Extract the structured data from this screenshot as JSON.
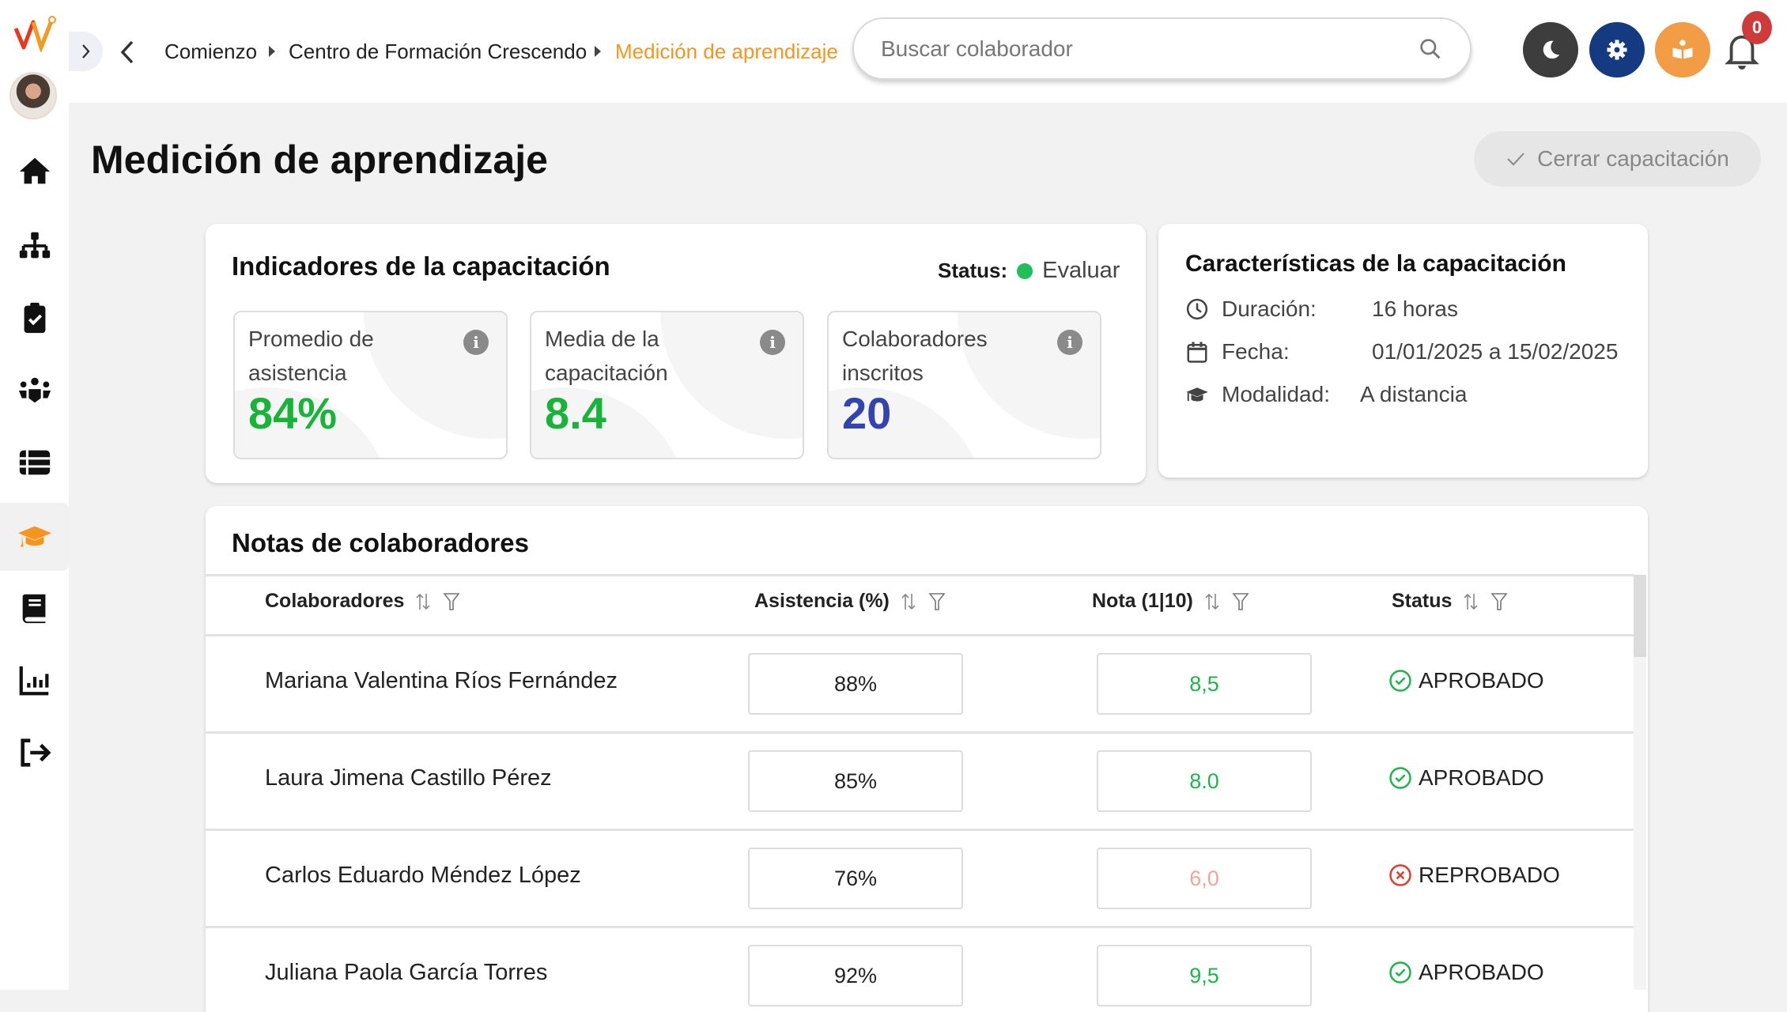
{
  "sidebar": {
    "items": [
      {
        "icon": "home-icon"
      },
      {
        "icon": "org-chart-icon"
      },
      {
        "icon": "clipboard-check-icon"
      },
      {
        "icon": "people-group-icon"
      },
      {
        "icon": "list-icon"
      },
      {
        "icon": "graduation-cap-icon",
        "active": true
      },
      {
        "icon": "book-icon"
      },
      {
        "icon": "bar-chart-icon"
      },
      {
        "icon": "logout-icon"
      }
    ],
    "accent": "#f7941d"
  },
  "header": {
    "breadcrumb": [
      "Comienzo",
      "Centro de Formación Crescendo",
      "Medición de aprendizaje"
    ],
    "search_placeholder": "Buscar colaborador",
    "notification_count": "0",
    "colors": {
      "dark_mode": "#3d3d3d",
      "settings": "#143a82",
      "learning": "#f29c45",
      "badge": "#cf3b3b"
    }
  },
  "page": {
    "title": "Medición de aprendizaje",
    "close_button": "Cerrar capacitación"
  },
  "indicators": {
    "title": "Indicadores de la capacitación",
    "status_label": "Status:",
    "status_value": "Evaluar",
    "status_color": "#1fbf5a",
    "metrics": [
      {
        "label": "Promedio de asistencia",
        "value": "84%",
        "color": "#18b43a"
      },
      {
        "label": "Media de la capacitación",
        "value": "8.4",
        "color": "#18b43a"
      },
      {
        "label": "Colaboradores inscritos",
        "value": "20",
        "color": "#3344b0"
      }
    ]
  },
  "features": {
    "title": "Características de la capacitación",
    "rows": [
      {
        "icon": "clock-icon",
        "label": "Duración:",
        "value": "16 horas"
      },
      {
        "icon": "calendar-icon",
        "label": "Fecha:",
        "value": "01/01/2025 a 15/02/2025"
      },
      {
        "icon": "graduation-cap-icon",
        "label": "Modalidad:",
        "value": "A distancia"
      }
    ]
  },
  "grades": {
    "title": "Notas de colaboradores",
    "columns": [
      "Colaboradores",
      "Asistencia (%)",
      "Nota (1|10)",
      "Status"
    ],
    "rows": [
      {
        "name": "Mariana Valentina Ríos Fernández",
        "attendance": "88%",
        "grade": "8,5",
        "status": "APROBADO",
        "passed": true
      },
      {
        "name": "Laura Jimena Castillo Pérez",
        "attendance": "85%",
        "grade": "8.0",
        "status": "APROBADO",
        "passed": true
      },
      {
        "name": "Carlos Eduardo Méndez López",
        "attendance": "76%",
        "grade": "6,0",
        "status": "REPROBADO",
        "passed": false
      },
      {
        "name": "Juliana Paola García Torres",
        "attendance": "92%",
        "grade": "9,5",
        "status": "APROBADO",
        "passed": true
      }
    ],
    "colors": {
      "pass": "#1ab84a",
      "fail": "#f2a49a",
      "fail_icon": "#e53b2c"
    }
  }
}
